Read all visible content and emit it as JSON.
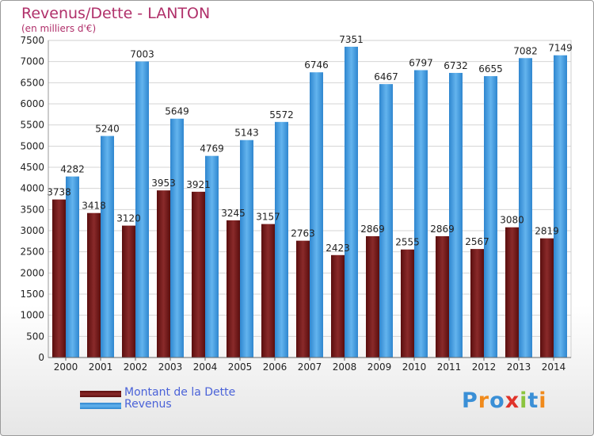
{
  "title": "Revenus/Dette - LANTON",
  "subtitle": "(en milliers d'€)",
  "colors": {
    "debt": "#7a1c1c",
    "revenue": "#4aa3e2",
    "title": "#b0306a",
    "legend_text": "#4a62d8"
  },
  "logo": {
    "text": "Proxiti",
    "letter_colors": [
      "#3a8fd6",
      "#f08a1c",
      "#3a8fd6",
      "#e0332a",
      "#8bc43f",
      "#3a8fd6",
      "#f08a1c"
    ]
  },
  "legend": [
    {
      "label": "Montant de la Dette",
      "color_key": "debt"
    },
    {
      "label": "Revenus",
      "color_key": "revenue"
    }
  ],
  "chart_data": {
    "type": "bar",
    "categories": [
      "2000",
      "2001",
      "2002",
      "2003",
      "2004",
      "2005",
      "2006",
      "2007",
      "2008",
      "2009",
      "2010",
      "2011",
      "2012",
      "2013",
      "2014"
    ],
    "series": [
      {
        "name": "Montant de la Dette",
        "values": [
          3738,
          3418,
          3120,
          3953,
          3921,
          3245,
          3157,
          2763,
          2423,
          2869,
          2555,
          2869,
          2567,
          3080,
          2819
        ],
        "labels": [
          "3738",
          "3418",
          "3120",
          "3953",
          "3921",
          "3245",
          "3157",
          "2763",
          "2423",
          "2869",
          "2555",
          "2869",
          "2567",
          "3080",
          "2819"
        ]
      },
      {
        "name": "Revenus",
        "values": [
          4282,
          5240,
          7003,
          5649,
          4769,
          5143,
          5572,
          6746,
          7351,
          6467,
          6797,
          6732,
          6655,
          7082,
          7149
        ],
        "labels": [
          "4282",
          "5240",
          "7003",
          "5649",
          "4769",
          "5143",
          "5572",
          "6746",
          "7351",
          "6467",
          "6797",
          "6732",
          "6655",
          "7082",
          "7149"
        ]
      }
    ],
    "ylim": [
      0,
      7500
    ],
    "yticks": [
      0,
      500,
      1000,
      1500,
      2000,
      2500,
      3000,
      3500,
      4000,
      4500,
      5000,
      5500,
      6000,
      6500,
      7000,
      7500
    ],
    "grid": true,
    "legend_position": "bottom-left"
  }
}
